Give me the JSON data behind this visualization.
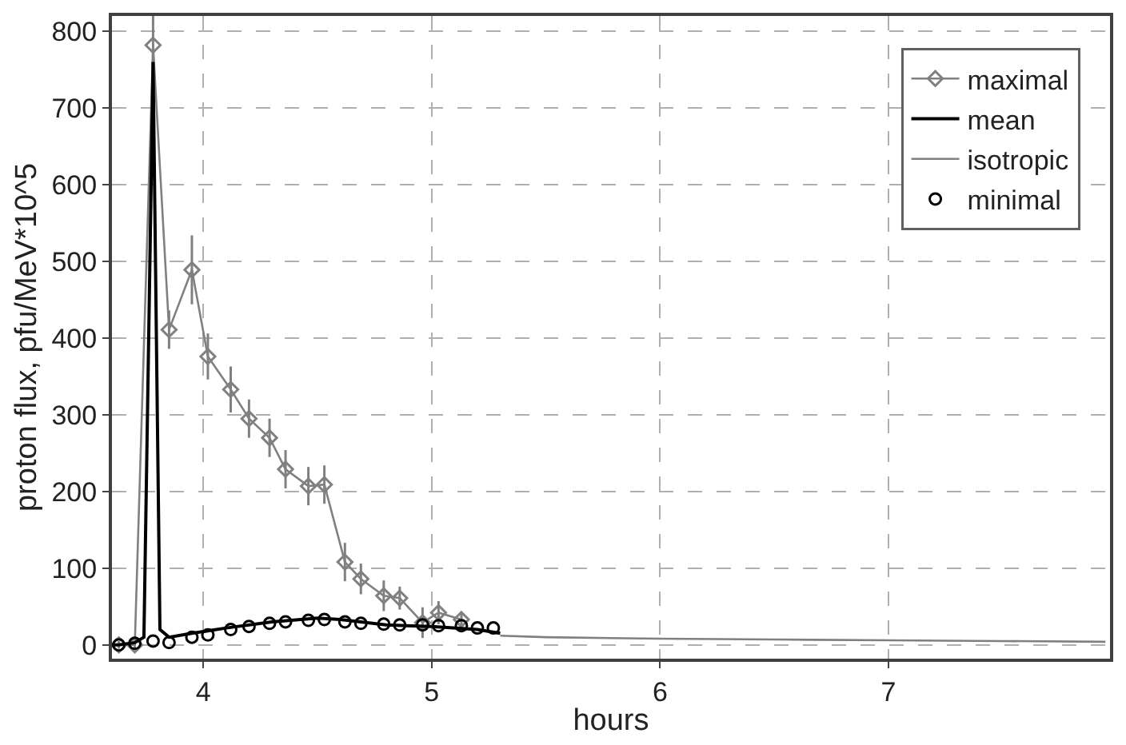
{
  "chart_data": {
    "type": "line",
    "xlabel": "hours",
    "ylabel": "proton flux, pfu/MeV*10^5",
    "xlim": [
      3.6,
      7.97
    ],
    "ylim": [
      -18,
      820
    ],
    "xticks": [
      4,
      5,
      6,
      7
    ],
    "yticks": [
      0,
      100,
      200,
      300,
      400,
      500,
      600,
      700,
      800
    ],
    "grid": true,
    "legend": "top right",
    "series": [
      {
        "name": "maximal",
        "color": "#808080",
        "marker": "diamond",
        "line_style": "solid",
        "x": [
          3.63,
          3.7,
          3.78,
          3.85,
          3.95,
          4.02,
          4.12,
          4.2,
          4.29,
          4.36,
          4.46,
          4.53,
          4.62,
          4.69,
          4.79,
          4.86,
          4.96,
          5.03,
          5.13
        ],
        "values": [
          0,
          0,
          782,
          411,
          489,
          376,
          333,
          295,
          270,
          229,
          207,
          209,
          108,
          86,
          64,
          61,
          29,
          42,
          33
        ],
        "errors": [
          5,
          5,
          70,
          25,
          45,
          30,
          30,
          25,
          25,
          25,
          25,
          25,
          25,
          20,
          20,
          15,
          20,
          15,
          10
        ]
      },
      {
        "name": "mean",
        "color": "#000000",
        "marker": "none",
        "line_style": "solid",
        "x": [
          3.6,
          3.63,
          3.7,
          3.74,
          3.78,
          3.81,
          3.85,
          3.95,
          4.1,
          4.3,
          4.5,
          4.6,
          4.8,
          5.0,
          5.2,
          5.3
        ],
        "values": [
          0,
          0,
          3,
          10,
          760,
          20,
          10,
          15,
          22,
          30,
          35,
          33,
          26,
          24,
          20,
          15
        ]
      },
      {
        "name": "isotropic",
        "color": "#808080",
        "marker": "none",
        "line_style": "solid",
        "x": [
          5.3,
          5.5,
          6,
          6.5,
          7,
          7.5,
          7.95
        ],
        "values": [
          12,
          10,
          8,
          7,
          6,
          5,
          4
        ]
      },
      {
        "name": "minimal",
        "type": "scatter",
        "color": "#000000",
        "marker": "circle",
        "x": [
          3.63,
          3.7,
          3.78,
          3.85,
          3.95,
          4.02,
          4.12,
          4.2,
          4.29,
          4.36,
          4.46,
          4.53,
          4.62,
          4.69,
          4.79,
          4.86,
          4.96,
          5.03,
          5.13,
          5.2,
          5.27
        ],
        "values": [
          0,
          2,
          5,
          3,
          10,
          13,
          20,
          24,
          28,
          30,
          32,
          33,
          30,
          28,
          27,
          26,
          26,
          25,
          25,
          22,
          22
        ]
      }
    ]
  }
}
